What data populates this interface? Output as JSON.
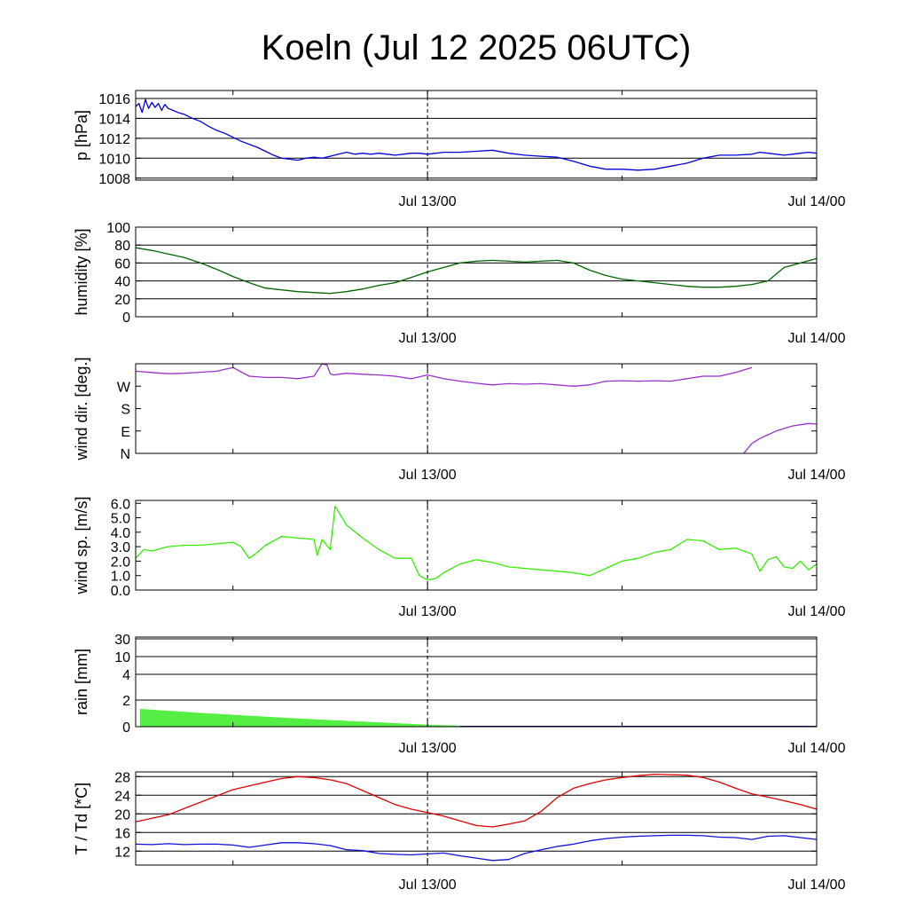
{
  "title": "Koeln (Jul 12 2025 06UTC)",
  "x_tick_labels": [
    "Jul 13/00",
    "Jul 14/00"
  ],
  "chart_data": [
    {
      "type": "line",
      "ylabel": "p [hPa]",
      "y_ticks": [
        "1008",
        "1010",
        "1012",
        "1014",
        "1016"
      ],
      "ylim": [
        1007.8,
        1016.8
      ],
      "xlim_hours": [
        0,
        42
      ],
      "grid": "horizontal",
      "series": [
        {
          "color": "#0000dd",
          "x": [
            0,
            0.2,
            0.4,
            0.6,
            0.8,
            1,
            1.2,
            1.4,
            1.6,
            1.8,
            2,
            2.3,
            2.6,
            3,
            3.5,
            4,
            4.5,
            5,
            5.5,
            6,
            6.5,
            7,
            7.5,
            8,
            8.5,
            9,
            9.5,
            10,
            10.5,
            11,
            11.5,
            12,
            12.5,
            13,
            13.5,
            14,
            14.5,
            15,
            15.5,
            16,
            16.5,
            17,
            17.5,
            18,
            19,
            20,
            21,
            22,
            23,
            24,
            25,
            26,
            27,
            28,
            29,
            30,
            31,
            32,
            33,
            34,
            35,
            36,
            37,
            38,
            38.5,
            39,
            39.5,
            40,
            40.5,
            41,
            41.5,
            42
          ],
          "values": [
            1015.2,
            1015.5,
            1014.6,
            1015.9,
            1015.0,
            1015.6,
            1015.1,
            1015.5,
            1014.8,
            1015.4,
            1015.0,
            1014.8,
            1014.6,
            1014.4,
            1014.0,
            1013.7,
            1013.2,
            1012.8,
            1012.5,
            1012.1,
            1011.7,
            1011.4,
            1011.1,
            1010.7,
            1010.3,
            1010.0,
            1009.9,
            1009.8,
            1010.0,
            1010.1,
            1010.0,
            1010.2,
            1010.4,
            1010.6,
            1010.4,
            1010.5,
            1010.4,
            1010.5,
            1010.4,
            1010.3,
            1010.4,
            1010.5,
            1010.5,
            1010.4,
            1010.6,
            1010.6,
            1010.7,
            1010.8,
            1010.5,
            1010.3,
            1010.2,
            1010.1,
            1009.7,
            1009.2,
            1008.9,
            1008.9,
            1008.8,
            1008.9,
            1009.2,
            1009.5,
            1010.0,
            1010.3,
            1010.3,
            1010.4,
            1010.6,
            1010.5,
            1010.4,
            1010.3,
            1010.4,
            1010.5,
            1010.6,
            1010.5
          ]
        }
      ]
    },
    {
      "type": "line",
      "ylabel": "humidity [%]",
      "y_ticks": [
        "0",
        "20",
        "40",
        "60",
        "80",
        "100"
      ],
      "ylim": [
        0,
        100
      ],
      "xlim_hours": [
        0,
        42
      ],
      "grid": "horizontal",
      "series": [
        {
          "color": "#006400",
          "x": [
            0,
            1,
            2,
            3,
            4,
            5,
            6,
            7,
            8,
            9,
            10,
            11,
            12,
            13,
            14,
            15,
            16,
            17,
            18,
            19,
            20,
            21,
            22,
            23,
            24,
            25,
            26,
            27,
            28,
            29,
            30,
            31,
            32,
            33,
            34,
            35,
            36,
            37,
            38,
            39,
            40,
            41,
            42
          ],
          "values": [
            77,
            74,
            70,
            66,
            60,
            53,
            45,
            38,
            32,
            30,
            28,
            27,
            26,
            28,
            31,
            35,
            38,
            44,
            50,
            55,
            60,
            62,
            63,
            62,
            61,
            62,
            63,
            60,
            52,
            46,
            42,
            40,
            38,
            36,
            34,
            33,
            33,
            34,
            36,
            40,
            55,
            60,
            65
          ]
        }
      ]
    },
    {
      "type": "line",
      "ylabel": "wind dir. [deg.]",
      "y_ticks": [
        "N",
        "E",
        "S",
        "W"
      ],
      "ylim": [
        0,
        360
      ],
      "xlim_hours": [
        0,
        42
      ],
      "grid": "none",
      "series": [
        {
          "color": "#9932cc",
          "x": [
            0,
            1,
            2,
            3,
            4,
            5,
            6,
            7,
            8,
            9,
            10,
            11,
            11.5,
            11.8,
            12,
            12.2,
            12.5,
            13,
            14,
            15,
            16,
            17,
            18,
            19,
            20,
            21,
            22,
            23,
            24,
            25,
            26,
            27,
            28,
            29,
            30,
            31,
            32,
            33,
            34,
            35,
            36,
            37,
            38
          ],
          "values": [
            330,
            325,
            320,
            322,
            326,
            330,
            345,
            310,
            305,
            305,
            300,
            310,
            360,
            355,
            320,
            315,
            318,
            322,
            318,
            315,
            310,
            300,
            315,
            300,
            290,
            282,
            275,
            280,
            278,
            280,
            275,
            270,
            275,
            290,
            292,
            290,
            292,
            290,
            300,
            310,
            310,
            325,
            345
          ]
        },
        {
          "color": "#9932cc",
          "x": [
            37.5,
            38,
            38.5,
            39,
            39.5,
            40,
            40.5,
            41,
            41.5,
            42
          ],
          "values": [
            0,
            40,
            60,
            75,
            90,
            100,
            110,
            115,
            120,
            118
          ]
        }
      ]
    },
    {
      "type": "line",
      "ylabel": "wind sp. [m/s]",
      "y_ticks": [
        "0.0",
        "1.0",
        "2.0",
        "3.0",
        "4.0",
        "5.0",
        "6.0"
      ],
      "ylim": [
        0,
        6.2
      ],
      "xlim_hours": [
        0,
        42
      ],
      "grid": "none",
      "series": [
        {
          "color": "#33ee00",
          "x": [
            0,
            0.5,
            1,
            2,
            3,
            4,
            5,
            6,
            6.5,
            7,
            7.5,
            8,
            9,
            10,
            11,
            11.2,
            11.5,
            12,
            12.3,
            13,
            14,
            15,
            16,
            17,
            17.5,
            18,
            18.5,
            19,
            20,
            21,
            22,
            23,
            24,
            25,
            26,
            27,
            28,
            29,
            30,
            31,
            32,
            33,
            34,
            35,
            36,
            37,
            38,
            38.5,
            39,
            39.5,
            40,
            40.5,
            41,
            41.5,
            42
          ],
          "values": [
            2.2,
            2.8,
            2.7,
            3.0,
            3.1,
            3.1,
            3.2,
            3.3,
            3.0,
            2.2,
            2.6,
            3.1,
            3.7,
            3.6,
            3.5,
            2.4,
            3.5,
            2.8,
            5.8,
            4.5,
            3.6,
            2.8,
            2.2,
            2.2,
            1.0,
            0.7,
            0.8,
            1.2,
            1.8,
            2.1,
            1.9,
            1.6,
            1.5,
            1.4,
            1.3,
            1.2,
            1.0,
            1.5,
            2.0,
            2.2,
            2.6,
            2.8,
            3.5,
            3.4,
            2.8,
            2.9,
            2.5,
            1.3,
            2.1,
            2.3,
            1.6,
            1.5,
            2.0,
            1.4,
            1.8
          ]
        }
      ]
    },
    {
      "type": "area",
      "ylabel": "rain [mm]",
      "y_ticks": [
        "0",
        "2",
        "4",
        "10",
        "30"
      ],
      "ylim": [
        0,
        30
      ],
      "xlim_hours": [
        0,
        42
      ],
      "grid": "horizontal",
      "series": [
        {
          "color": "#55ee44",
          "x": [
            0.3,
            4,
            9,
            14,
            18,
            21,
            42
          ],
          "values": [
            1.3,
            1.0,
            0.65,
            0.35,
            0.12,
            0.0,
            0.0
          ]
        },
        {
          "color": "#000080",
          "x": [
            20,
            42
          ],
          "values": [
            0.02,
            0.02
          ]
        }
      ]
    },
    {
      "type": "line",
      "ylabel": "T / Td [*C]",
      "y_ticks": [
        "12",
        "16",
        "20",
        "24",
        "28"
      ],
      "ylim": [
        9,
        29
      ],
      "xlim_hours": [
        0,
        42
      ],
      "grid": "horizontal",
      "series": [
        {
          "color": "#e00000",
          "x": [
            0,
            2,
            4,
            6,
            8,
            9,
            10,
            11,
            12,
            13,
            14,
            15,
            16,
            17,
            18,
            19,
            20,
            21,
            22,
            23,
            24,
            25,
            26,
            27,
            28,
            29,
            30,
            31,
            32,
            33,
            34,
            35,
            36,
            37,
            38,
            39,
            40,
            41,
            42
          ],
          "values": [
            18.3,
            19.8,
            22.5,
            25.2,
            26.8,
            27.6,
            28.0,
            27.8,
            27.3,
            26.5,
            25.0,
            23.5,
            22.0,
            21.0,
            20.3,
            19.5,
            18.5,
            17.5,
            17.2,
            17.8,
            18.5,
            20.5,
            23.5,
            25.5,
            26.5,
            27.3,
            27.8,
            28.2,
            28.5,
            28.4,
            28.3,
            27.8,
            26.8,
            25.5,
            24.3,
            23.6,
            22.8,
            22.0,
            21.0
          ]
        },
        {
          "color": "#1010dd",
          "x": [
            0,
            1,
            2,
            3,
            4,
            5,
            6,
            7,
            8,
            9,
            10,
            11,
            12,
            13,
            14,
            15,
            16,
            17,
            18,
            19,
            20,
            21,
            22,
            23,
            24,
            25,
            26,
            27,
            28,
            29,
            30,
            31,
            32,
            33,
            34,
            35,
            36,
            37,
            38,
            39,
            40,
            41,
            42
          ],
          "values": [
            13.5,
            13.4,
            13.6,
            13.4,
            13.5,
            13.5,
            13.3,
            12.8,
            13.3,
            13.8,
            13.8,
            13.6,
            13.2,
            12.3,
            12.1,
            11.5,
            11.3,
            11.2,
            11.4,
            11.6,
            11.0,
            10.5,
            10.0,
            10.2,
            11.5,
            12.3,
            13.0,
            13.5,
            14.2,
            14.7,
            15.0,
            15.2,
            15.3,
            15.4,
            15.4,
            15.3,
            15.0,
            14.9,
            14.5,
            15.2,
            15.3,
            14.9,
            14.5
          ]
        }
      ]
    }
  ]
}
